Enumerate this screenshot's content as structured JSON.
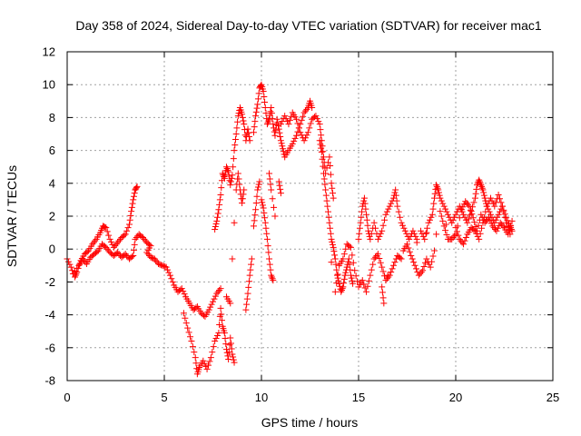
{
  "chart_data": {
    "type": "scatter",
    "title": "Day 358 of 2024, Sidereal Day-to-day VTEC variation (SDTVAR) for receiver mac1",
    "xlabel": "GPS time / hours",
    "ylabel": "SDTVAR / TECUs",
    "xlim": [
      0,
      25
    ],
    "ylim": [
      -8,
      12
    ],
    "xticks": [
      "0",
      "5",
      "10",
      "15",
      "20",
      "25"
    ],
    "yticks": [
      "-8",
      "-6",
      "-4",
      "-2",
      "0",
      "2",
      "4",
      "6",
      "8",
      "10",
      "12"
    ],
    "grid": true,
    "marker": "+",
    "color": "#ff0000",
    "series": [
      {
        "name": "SDTVAR",
        "values": [
          [
            0.0,
            -0.6
          ],
          [
            0.2,
            -1.1
          ],
          [
            0.4,
            -1.7
          ],
          [
            0.5,
            -1.4
          ],
          [
            0.7,
            -0.7
          ],
          [
            0.9,
            -0.3
          ],
          [
            1.1,
            -0.1
          ],
          [
            1.3,
            0.3
          ],
          [
            1.5,
            0.6
          ],
          [
            1.7,
            1.0
          ],
          [
            1.85,
            1.4
          ],
          [
            2.0,
            1.3
          ],
          [
            2.2,
            0.6
          ],
          [
            2.4,
            0.1
          ],
          [
            2.6,
            0.4
          ],
          [
            2.8,
            0.7
          ],
          [
            3.0,
            0.9
          ],
          [
            3.2,
            1.5
          ],
          [
            3.3,
            2.3
          ],
          [
            3.4,
            3.0
          ],
          [
            3.5,
            3.6
          ],
          [
            3.6,
            3.8
          ],
          [
            0.3,
            -1.5
          ],
          [
            0.6,
            -1.0
          ],
          [
            0.8,
            -0.6
          ],
          [
            1.0,
            -0.9
          ],
          [
            1.2,
            -0.5
          ],
          [
            1.4,
            -0.3
          ],
          [
            1.6,
            -0.1
          ],
          [
            1.8,
            0.3
          ],
          [
            2.0,
            0.1
          ],
          [
            2.2,
            -0.2
          ],
          [
            2.4,
            -0.4
          ],
          [
            2.6,
            -0.2
          ],
          [
            2.8,
            -0.5
          ],
          [
            3.0,
            -0.3
          ],
          [
            3.2,
            -0.6
          ],
          [
            3.4,
            -0.4
          ],
          [
            3.5,
            0.6
          ],
          [
            3.7,
            0.9
          ],
          [
            3.9,
            0.7
          ],
          [
            4.1,
            0.4
          ],
          [
            4.3,
            0.2
          ],
          [
            4.1,
            -0.2
          ],
          [
            4.3,
            -0.5
          ],
          [
            4.5,
            -0.6
          ],
          [
            4.7,
            -0.9
          ],
          [
            4.9,
            -1.0
          ],
          [
            5.1,
            -1.1
          ],
          [
            5.3,
            -1.6
          ],
          [
            5.5,
            -2.2
          ],
          [
            5.7,
            -2.6
          ],
          [
            5.9,
            -2.4
          ],
          [
            6.1,
            -2.9
          ],
          [
            6.3,
            -3.3
          ],
          [
            6.5,
            -3.7
          ],
          [
            6.7,
            -3.5
          ],
          [
            6.9,
            -3.9
          ],
          [
            7.1,
            -4.1
          ],
          [
            7.3,
            -3.7
          ],
          [
            7.5,
            -3.2
          ],
          [
            7.7,
            -2.7
          ],
          [
            7.9,
            -2.4
          ],
          [
            6.0,
            -3.9
          ],
          [
            6.2,
            -4.8
          ],
          [
            6.4,
            -5.6
          ],
          [
            6.6,
            -6.6
          ],
          [
            6.7,
            -7.6
          ],
          [
            6.8,
            -7.2
          ],
          [
            7.0,
            -6.8
          ],
          [
            7.2,
            -7.3
          ],
          [
            7.4,
            -6.6
          ],
          [
            7.6,
            -5.6
          ],
          [
            7.8,
            -5.1
          ],
          [
            7.9,
            -3.6
          ],
          [
            8.0,
            -4.7
          ],
          [
            8.1,
            -5.1
          ],
          [
            8.2,
            -6.1
          ],
          [
            8.3,
            -6.7
          ],
          [
            8.4,
            -5.4
          ],
          [
            8.5,
            -6.4
          ],
          [
            8.6,
            -6.9
          ],
          [
            8.2,
            -2.9
          ],
          [
            8.4,
            -3.3
          ],
          [
            7.6,
            1.2
          ],
          [
            7.7,
            1.7
          ],
          [
            7.8,
            2.4
          ],
          [
            7.9,
            3.3
          ],
          [
            8.0,
            4.6
          ],
          [
            8.1,
            4.3
          ],
          [
            8.2,
            5.0
          ],
          [
            8.3,
            4.7
          ],
          [
            8.4,
            3.9
          ],
          [
            8.5,
            4.5
          ],
          [
            8.6,
            6.0
          ],
          [
            8.7,
            7.0
          ],
          [
            8.8,
            8.1
          ],
          [
            8.9,
            8.6
          ],
          [
            9.0,
            8.2
          ],
          [
            9.1,
            7.6
          ],
          [
            9.2,
            6.6
          ],
          [
            9.3,
            7.3
          ],
          [
            9.4,
            6.6
          ],
          [
            8.5,
            -0.6
          ],
          [
            8.6,
            1.6
          ],
          [
            8.7,
            3.6
          ],
          [
            8.8,
            4.6
          ],
          [
            8.9,
            3.6
          ],
          [
            9.0,
            2.8
          ],
          [
            9.1,
            3.6
          ],
          [
            9.2,
            -3.7
          ],
          [
            9.3,
            -2.7
          ],
          [
            9.4,
            -1.6
          ],
          [
            9.5,
            -0.6
          ],
          [
            9.6,
            1.4
          ],
          [
            9.7,
            2.4
          ],
          [
            9.8,
            3.6
          ],
          [
            9.9,
            4.1
          ],
          [
            9.6,
            7.1
          ],
          [
            9.7,
            8.1
          ],
          [
            9.8,
            8.8
          ],
          [
            9.9,
            9.8
          ],
          [
            10.0,
            10.0
          ],
          [
            10.1,
            9.6
          ],
          [
            10.2,
            8.6
          ],
          [
            10.3,
            7.6
          ],
          [
            10.4,
            7.9
          ],
          [
            10.5,
            8.6
          ],
          [
            10.6,
            7.6
          ],
          [
            10.7,
            6.9
          ],
          [
            10.8,
            7.9
          ],
          [
            10.9,
            7.3
          ],
          [
            11.0,
            6.6
          ],
          [
            11.1,
            6.1
          ],
          [
            11.2,
            5.6
          ],
          [
            11.4,
            6.0
          ],
          [
            11.6,
            6.4
          ],
          [
            11.8,
            6.9
          ],
          [
            12.0,
            7.6
          ],
          [
            12.2,
            8.3
          ],
          [
            12.4,
            8.6
          ],
          [
            12.5,
            9.0
          ],
          [
            12.6,
            8.6
          ],
          [
            10.0,
            3.0
          ],
          [
            10.1,
            2.5
          ],
          [
            10.2,
            1.6
          ],
          [
            10.3,
            0.6
          ],
          [
            10.4,
            -0.6
          ],
          [
            10.5,
            -1.6
          ],
          [
            10.6,
            -1.9
          ],
          [
            10.4,
            4.6
          ],
          [
            10.5,
            3.6
          ],
          [
            10.7,
            2.0
          ],
          [
            10.9,
            4.1
          ],
          [
            11.0,
            3.4
          ],
          [
            11.0,
            7.6
          ],
          [
            11.2,
            8.1
          ],
          [
            11.4,
            7.6
          ],
          [
            11.6,
            8.3
          ],
          [
            11.8,
            7.9
          ],
          [
            12.0,
            7.1
          ],
          [
            12.2,
            6.6
          ],
          [
            12.4,
            7.1
          ],
          [
            12.6,
            7.9
          ],
          [
            12.8,
            8.1
          ],
          [
            13.0,
            7.6
          ],
          [
            13.1,
            6.6
          ],
          [
            13.2,
            5.6
          ],
          [
            13.3,
            4.6
          ],
          [
            13.5,
            5.6
          ],
          [
            13.6,
            4.0
          ],
          [
            13.7,
            3.1
          ],
          [
            13.0,
            6.6
          ],
          [
            13.1,
            5.9
          ],
          [
            13.2,
            4.6
          ],
          [
            13.3,
            3.6
          ],
          [
            13.4,
            2.6
          ],
          [
            13.5,
            1.6
          ],
          [
            13.6,
            0.6
          ],
          [
            13.7,
            0.1
          ],
          [
            13.8,
            -0.6
          ],
          [
            13.9,
            -1.6
          ],
          [
            14.0,
            -2.1
          ],
          [
            14.1,
            -2.6
          ],
          [
            14.2,
            -2.3
          ],
          [
            14.3,
            -1.6
          ],
          [
            14.4,
            -1.1
          ],
          [
            14.5,
            -0.6
          ],
          [
            14.6,
            -1.6
          ],
          [
            14.7,
            -2.1
          ],
          [
            13.6,
            -0.8
          ],
          [
            13.8,
            -2.6
          ],
          [
            14.0,
            -1.0
          ],
          [
            14.2,
            -0.6
          ],
          [
            14.4,
            0.3
          ],
          [
            14.6,
            0.1
          ],
          [
            14.8,
            -1.3
          ],
          [
            15.0,
            -2.3
          ],
          [
            15.2,
            -1.9
          ],
          [
            15.4,
            -2.6
          ],
          [
            15.6,
            -1.6
          ],
          [
            15.8,
            -0.6
          ],
          [
            16.0,
            -0.3
          ],
          [
            16.2,
            -1.1
          ],
          [
            16.4,
            -1.9
          ],
          [
            16.6,
            -1.6
          ],
          [
            16.8,
            -1.0
          ],
          [
            17.0,
            -0.4
          ],
          [
            17.2,
            -0.6
          ],
          [
            15.0,
            0.6
          ],
          [
            15.1,
            1.6
          ],
          [
            15.2,
            2.6
          ],
          [
            15.3,
            3.1
          ],
          [
            15.4,
            2.1
          ],
          [
            15.5,
            1.1
          ],
          [
            15.6,
            0.6
          ],
          [
            15.8,
            1.6
          ],
          [
            16.0,
            0.6
          ],
          [
            16.2,
            1.1
          ],
          [
            16.4,
            2.1
          ],
          [
            16.6,
            2.6
          ],
          [
            16.8,
            3.1
          ],
          [
            16.9,
            3.6
          ],
          [
            17.0,
            2.6
          ],
          [
            17.2,
            1.6
          ],
          [
            17.4,
            1.1
          ],
          [
            17.6,
            0.6
          ],
          [
            17.8,
            1.1
          ],
          [
            18.0,
            0.6
          ],
          [
            16.2,
            -2.3
          ],
          [
            16.3,
            -3.3
          ],
          [
            16.5,
            -1.6
          ],
          [
            17.3,
            -0.1
          ],
          [
            17.5,
            0.3
          ],
          [
            17.7,
            -0.4
          ],
          [
            17.9,
            -1.0
          ],
          [
            18.1,
            -1.6
          ],
          [
            18.3,
            -1.3
          ],
          [
            18.5,
            -0.6
          ],
          [
            18.7,
            -1.1
          ],
          [
            18.9,
            -0.1
          ],
          [
            18.2,
            1.1
          ],
          [
            18.4,
            0.6
          ],
          [
            18.6,
            1.6
          ],
          [
            18.8,
            2.1
          ],
          [
            18.9,
            3.1
          ],
          [
            19.0,
            3.9
          ],
          [
            19.1,
            3.6
          ],
          [
            19.2,
            3.1
          ],
          [
            19.4,
            2.6
          ],
          [
            19.6,
            2.1
          ],
          [
            19.8,
            1.6
          ],
          [
            20.0,
            2.1
          ],
          [
            20.2,
            2.6
          ],
          [
            20.4,
            2.1
          ],
          [
            20.6,
            1.6
          ],
          [
            20.8,
            2.3
          ],
          [
            21.0,
            3.1
          ],
          [
            21.1,
            3.9
          ],
          [
            21.2,
            4.2
          ],
          [
            21.3,
            3.9
          ],
          [
            21.4,
            3.6
          ],
          [
            21.5,
            3.1
          ],
          [
            21.6,
            2.6
          ],
          [
            21.8,
            2.1
          ],
          [
            22.0,
            1.6
          ],
          [
            22.2,
            2.1
          ],
          [
            22.4,
            2.6
          ],
          [
            22.6,
            1.9
          ],
          [
            22.8,
            1.4
          ],
          [
            22.9,
            1.1
          ],
          [
            18.0,
            0.4
          ],
          [
            18.5,
            1.0
          ],
          [
            19.0,
            0.9
          ],
          [
            19.5,
            1.5
          ],
          [
            20.0,
            1.3
          ],
          [
            20.2,
            0.6
          ],
          [
            20.4,
            0.3
          ],
          [
            20.6,
            0.9
          ],
          [
            20.8,
            1.3
          ],
          [
            21.0,
            1.1
          ],
          [
            21.2,
            0.6
          ],
          [
            21.4,
            1.6
          ],
          [
            21.6,
            2.6
          ],
          [
            21.8,
            3.1
          ],
          [
            22.0,
            2.6
          ],
          [
            22.2,
            3.3
          ],
          [
            22.4,
            2.6
          ],
          [
            22.6,
            1.6
          ],
          [
            22.8,
            0.9
          ],
          [
            19.2,
            2.3
          ],
          [
            19.4,
            1.4
          ],
          [
            19.6,
            0.6
          ],
          [
            19.8,
            0.6
          ],
          [
            20.0,
            0.9
          ],
          [
            20.3,
            2.4
          ],
          [
            20.5,
            2.9
          ],
          [
            20.7,
            2.6
          ],
          [
            20.9,
            1.9
          ],
          [
            21.1,
            1.1
          ],
          [
            21.3,
            2.1
          ],
          [
            21.5,
            1.6
          ],
          [
            21.7,
            1.9
          ],
          [
            21.9,
            1.4
          ],
          [
            22.1,
            1.1
          ],
          [
            22.3,
            1.6
          ],
          [
            22.5,
            1.3
          ],
          [
            22.7,
            0.9
          ],
          [
            22.9,
            1.7
          ]
        ]
      }
    ]
  }
}
